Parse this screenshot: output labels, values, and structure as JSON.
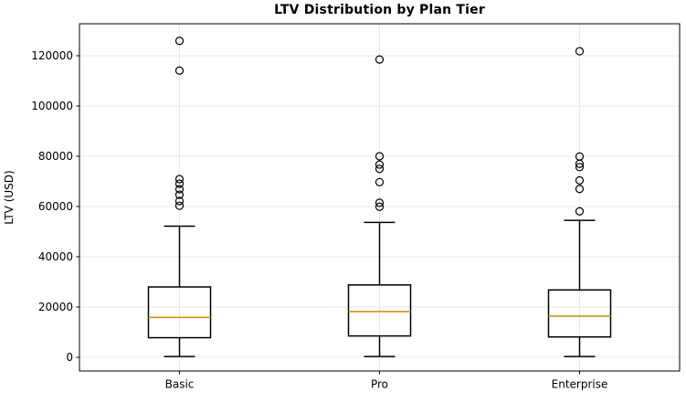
{
  "chart_data": {
    "type": "boxplot",
    "title": "LTV Distribution by Plan Tier",
    "xlabel": "",
    "ylabel": "LTV (USD)",
    "categories": [
      "Basic",
      "Pro",
      "Enterprise"
    ],
    "y_ticks": [
      0,
      20000,
      40000,
      60000,
      80000,
      100000,
      120000
    ],
    "ylim": [
      -5455,
      132727
    ],
    "grid": true,
    "legend": false,
    "series": [
      {
        "name": "Basic",
        "whisker_low": 300,
        "q1": 7800,
        "median": 15900,
        "q3": 28000,
        "whisker_high": 52200,
        "outliers": [
          60300,
          62200,
          64700,
          66900,
          69100,
          70900,
          114100,
          125900
        ]
      },
      {
        "name": "Pro",
        "whisker_low": 300,
        "q1": 8500,
        "median": 18200,
        "q3": 28800,
        "whisker_high": 53700,
        "outliers": [
          59900,
          61500,
          69700,
          75000,
          76700,
          80000,
          118500
        ]
      },
      {
        "name": "Enterprise",
        "whisker_low": 300,
        "q1": 8100,
        "median": 16400,
        "q3": 26800,
        "whisker_high": 54500,
        "outliers": [
          58100,
          67000,
          70400,
          75700,
          77000,
          79900,
          121800
        ]
      }
    ],
    "colors": {
      "box_line": "#000000",
      "median": "#c8961e",
      "flier_edge": "#000000",
      "grid": "#e8e8e8",
      "axis": "#000000",
      "background": "#ffffff",
      "text": "#000000"
    }
  }
}
